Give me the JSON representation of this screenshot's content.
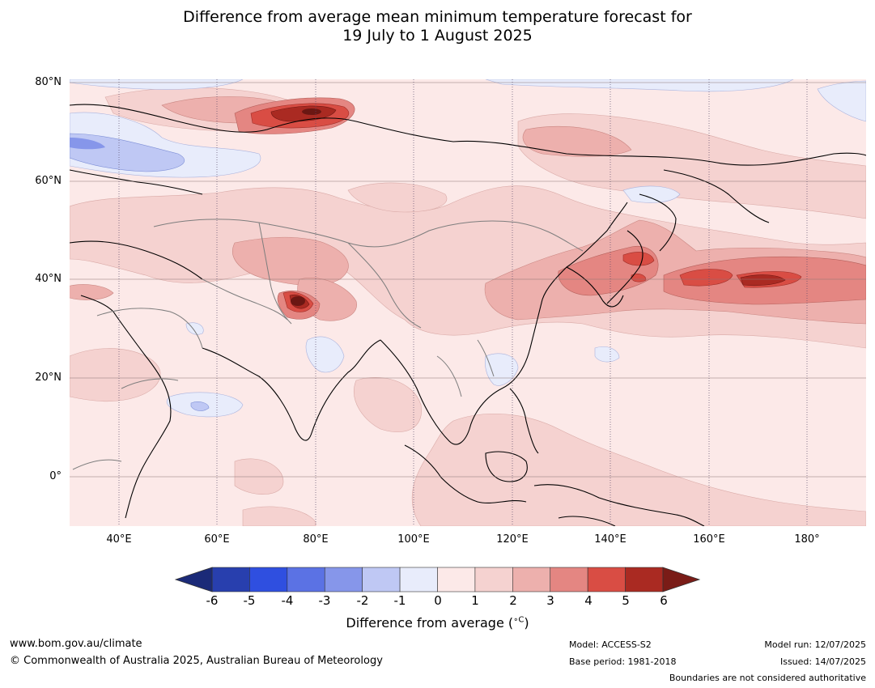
{
  "title": {
    "line1": "Difference from average mean minimum temperature forecast for",
    "line2": "19 July to 1 August 2025"
  },
  "map": {
    "lat_labels": [
      "80°N",
      "60°N",
      "40°N",
      "20°N",
      "0°"
    ],
    "lon_labels": [
      "40°E",
      "60°E",
      "80°E",
      "100°E",
      "120°E",
      "140°E",
      "160°E",
      "180°"
    ],
    "extent": {
      "lon_min": 30,
      "lon_max": 192,
      "lat_min": -10,
      "lat_max": 80
    }
  },
  "colorbar": {
    "ticks": [
      "-6",
      "-5",
      "-4",
      "-3",
      "-2",
      "-1",
      "0",
      "1",
      "2",
      "3",
      "4",
      "5",
      "6"
    ],
    "colors": [
      "#1b2a78",
      "#283fae",
      "#2f4fe0",
      "#5b72e4",
      "#8696ea",
      "#bfc8f4",
      "#e8ecfb",
      "#fce9e8",
      "#f5d2d0",
      "#edb0ad",
      "#e48682",
      "#d94d44",
      "#aa2a22",
      "#7a1c17"
    ],
    "label": "Difference from average (°C)",
    "label_prefix": "Difference from average (",
    "label_unit": "∘C",
    "label_suffix": ")"
  },
  "footer": {
    "website": "www.bom.gov.au/climate",
    "copyright": "© Commonwealth of Australia 2025, Australian Bureau of Meteorology",
    "model": "Model: ACCESS-S2",
    "base_period": "Base period: 1981-2018",
    "model_run": "Model run: 12/07/2025",
    "issued": "Issued: 14/07/2025",
    "disclaimer": "Boundaries are not considered authoritative"
  }
}
